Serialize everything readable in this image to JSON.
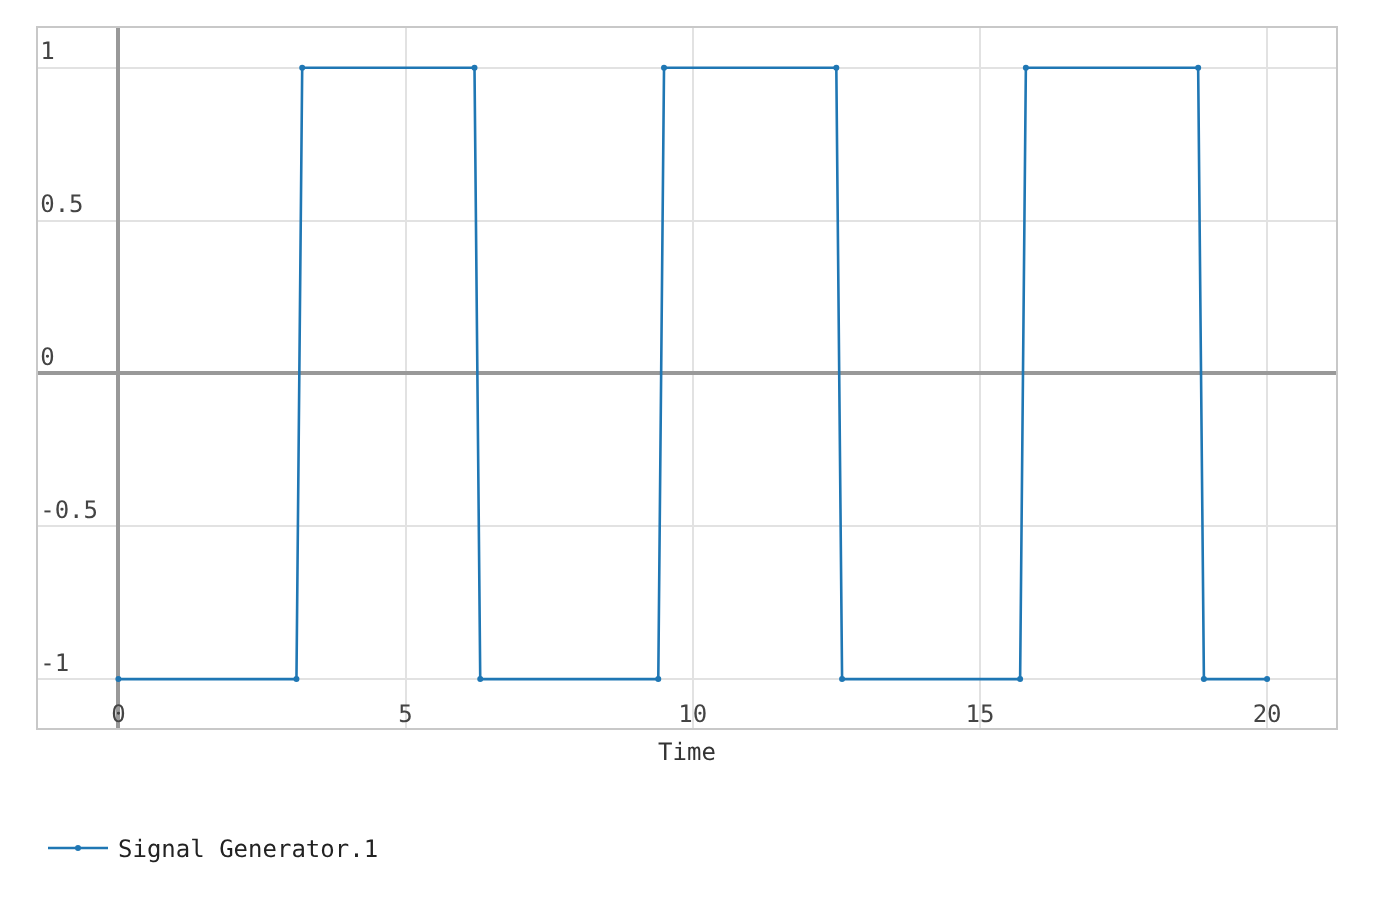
{
  "chart_data": {
    "type": "line",
    "xlabel": "Time",
    "x": [
      0,
      3.1,
      3.2,
      6.2,
      6.3,
      9.4,
      9.5,
      12.5,
      12.6,
      15.7,
      15.8,
      18.8,
      18.9,
      20
    ],
    "series": [
      {
        "name": "Signal Generator.1",
        "color": "#1f77b4",
        "values": [
          -1,
          -1,
          1,
          1,
          -1,
          -1,
          1,
          1,
          -1,
          -1,
          1,
          1,
          -1,
          -1
        ]
      }
    ],
    "xlim": [
      -1.4,
      21.2
    ],
    "xticks": [
      0,
      5,
      10,
      15,
      20
    ],
    "ylim": [
      -1.16,
      1.13
    ],
    "yticks": [
      -1,
      -0.5,
      0,
      0.5,
      1
    ],
    "grid": true,
    "legend": "bottom left",
    "marker": "circle",
    "line_style": "solid"
  }
}
